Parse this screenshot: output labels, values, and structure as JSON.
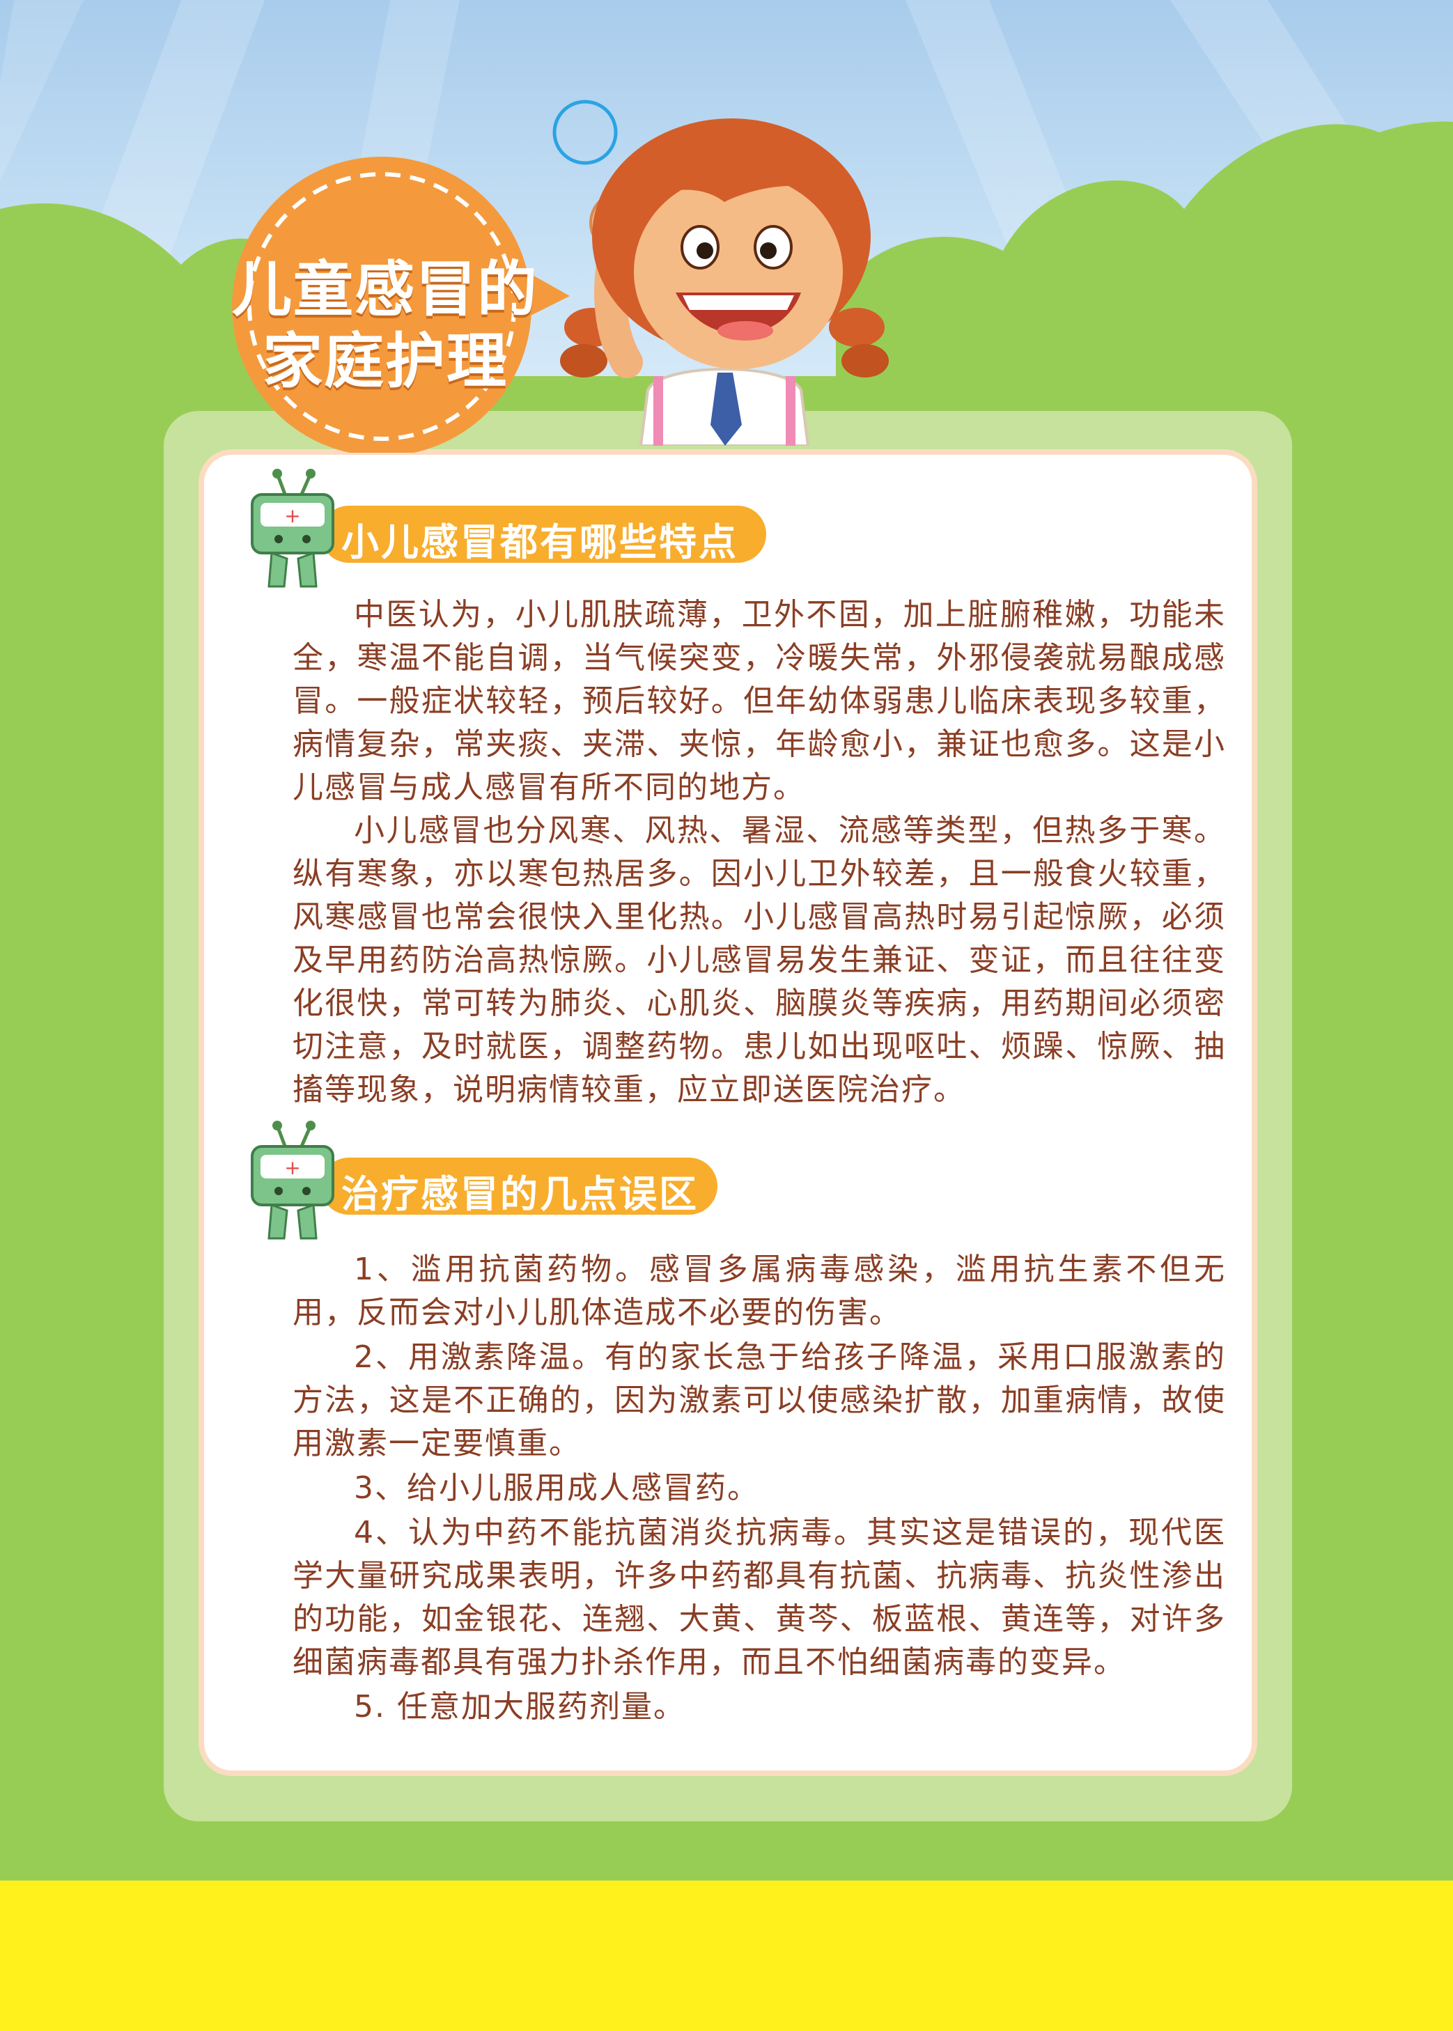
{
  "poster": {
    "title_line1": "儿童感冒的",
    "title_line2": "家庭护理"
  },
  "sections": [
    {
      "heading": "小儿感冒都有哪些特点",
      "paragraphs": [
        "中医认为，小儿肌肤疏薄，卫外不固，加上脏腑稚嫩，功能未全，寒温不能自调，当气候突变，冷暖失常，外邪侵袭就易酿成感冒。一般症状较轻，预后较好。但年幼体弱患儿临床表现多较重，病情复杂，常夹痰、夹滞、夹惊，年龄愈小，兼证也愈多。这是小儿感冒与成人感冒有所不同的地方。",
        "小儿感冒也分风寒、风热、暑湿、流感等类型，但热多于寒。纵有寒象，亦以寒包热居多。因小儿卫外较差，且一般食火较重，风寒感冒也常会很快入里化热。小儿感冒高热时易引起惊厥，必须及早用药防治高热惊厥。小儿感冒易发生兼证、变证，而且往往变化很快，常可转为肺炎、心肌炎、脑膜炎等疾病，用药期间必须密切注意，及时就医，调整药物。患儿如出现呕吐、烦躁、惊厥、抽搐等现象，说明病情较重，应立即送医院治疗。"
      ]
    },
    {
      "heading": "治疗感冒的几点误区",
      "paragraphs": [
        "1、滥用抗菌药物。感冒多属病毒感染，滥用抗生素不但无用，反而会对小儿肌体造成不必要的伤害。",
        "2、用激素降温。有的家长急于给孩子降温，采用口服激素的方法，这是不正确的，因为激素可以使感染扩散，加重病情，故使用激素一定要慎重。",
        "3、给小儿服用成人感冒药。",
        "4、认为中药不能抗菌消炎抗病毒。其实这是错误的，现代医学大量研究成果表明，许多中药都具有抗菌、抗病毒、抗炎性渗出的功能，如金银花、连翘、大黄、黄芩、板蓝根、黄连等，对许多细菌病毒都具有强力扑杀作用，而且不怕细菌病毒的变异。",
        "5. 任意加大服药剂量。"
      ]
    }
  ],
  "colors": {
    "sky": "#a8ccec",
    "grass": "#98cd55",
    "ground": "#fff21c",
    "panel_outer": "#c6e29c",
    "panel_border": "#fbdcc0",
    "badge_orange": "#f49a3c",
    "heading_orange": "#f8ad2d",
    "body_text": "#8a3e24"
  },
  "icons": {
    "badge": "speech-bubble-badge",
    "mascot": "green-tv-mascot-icon",
    "character": "cheering-girl-illustration"
  }
}
